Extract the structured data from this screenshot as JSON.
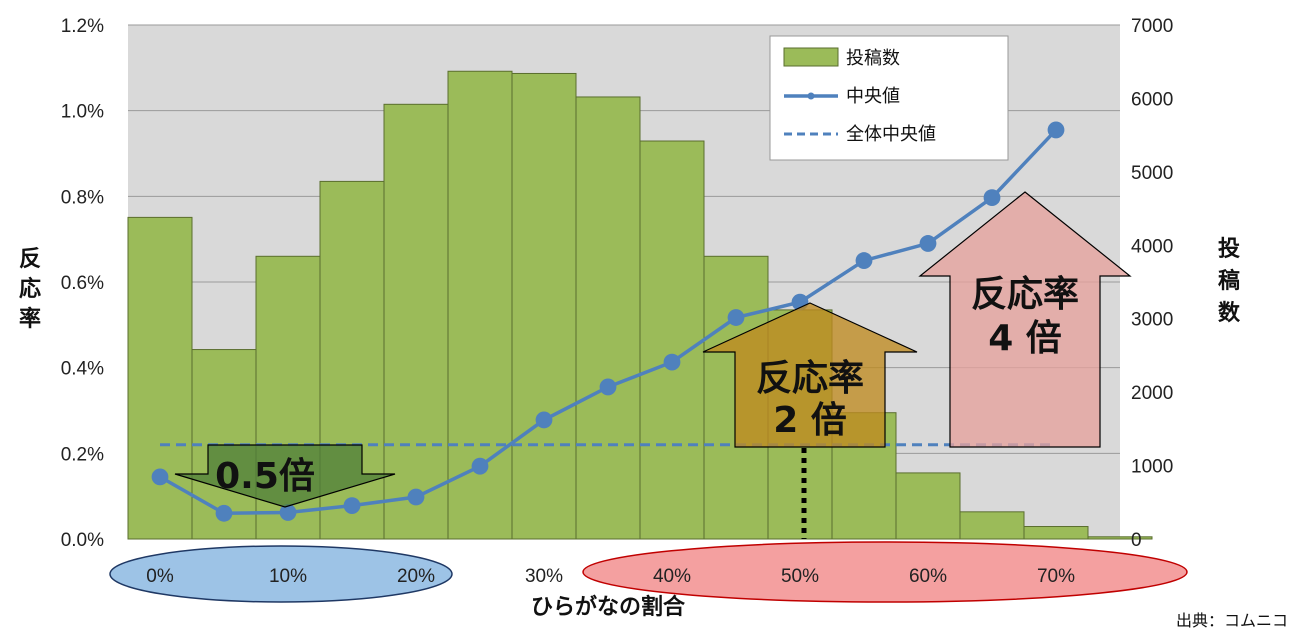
{
  "chart_data": {
    "type": "bar",
    "xlabel": "ひらがなの割合",
    "ylabel": "反応率",
    "y2label": "投稿数",
    "x_ticks": [
      "0%",
      "10%",
      "20%",
      "30%",
      "40%",
      "50%",
      "60%",
      "70%"
    ],
    "x_range": [
      -0.025,
      0.75
    ],
    "y_range": [
      0,
      0.012
    ],
    "y_ticks": [
      0,
      0.002,
      0.004,
      0.006,
      0.008,
      0.01,
      0.012
    ],
    "y_tick_labels": [
      "0.0%",
      "0.2%",
      "0.4%",
      "0.6%",
      "0.8%",
      "1.0%",
      "1.2%"
    ],
    "y2_range": [
      0,
      7000
    ],
    "y2_ticks": [
      0,
      1000,
      2000,
      3000,
      4000,
      5000,
      6000,
      7000
    ],
    "y2_tick_labels": [
      "0",
      "1000",
      "2000",
      "3000",
      "4000",
      "5000",
      "6000",
      "7000"
    ],
    "grid": true,
    "legend_position": "top-right",
    "series": [
      {
        "name": "投稿数",
        "kind": "bar",
        "axis": "right",
        "bin_width": 0.05,
        "bin_starts": [
          -0.025,
          0.025,
          0.075,
          0.125,
          0.175,
          0.225,
          0.275,
          0.325,
          0.375,
          0.425,
          0.475,
          0.525,
          0.575,
          0.625,
          0.675,
          0.725
        ],
        "values": [
          4380,
          2580,
          3850,
          4870,
          5920,
          6370,
          6340,
          6020,
          5420,
          3850,
          3120,
          1720,
          900,
          370,
          170,
          30
        ],
        "color": "#9bbb59"
      },
      {
        "name": "中央値",
        "kind": "line",
        "axis": "left",
        "x": [
          0.0,
          0.05,
          0.1,
          0.15,
          0.2,
          0.25,
          0.3,
          0.35,
          0.4,
          0.45,
          0.5,
          0.55,
          0.6,
          0.65,
          0.7
        ],
        "values": [
          0.00145,
          0.0006,
          0.00062,
          0.00078,
          0.00098,
          0.0017,
          0.00278,
          0.00355,
          0.00413,
          0.00517,
          0.00553,
          0.0065,
          0.0069,
          0.00797,
          0.00955
        ],
        "color": "#4f81bd"
      },
      {
        "name": "全体中央値",
        "kind": "hline",
        "axis": "left",
        "value": 0.0022,
        "x_start": 0.0,
        "x_end": 0.7,
        "color": "#4f81bd"
      }
    ],
    "annotations": [
      {
        "id": "half",
        "text": "0.5倍",
        "color": "#4f7f3a"
      },
      {
        "id": "double",
        "lines": [
          "反応率",
          "2 倍"
        ],
        "color": "#bf8a20"
      },
      {
        "id": "quad",
        "lines": [
          "反応率",
          "4 倍"
        ],
        "color": "#e6a29c"
      }
    ],
    "source": "出典：コムニコ"
  }
}
